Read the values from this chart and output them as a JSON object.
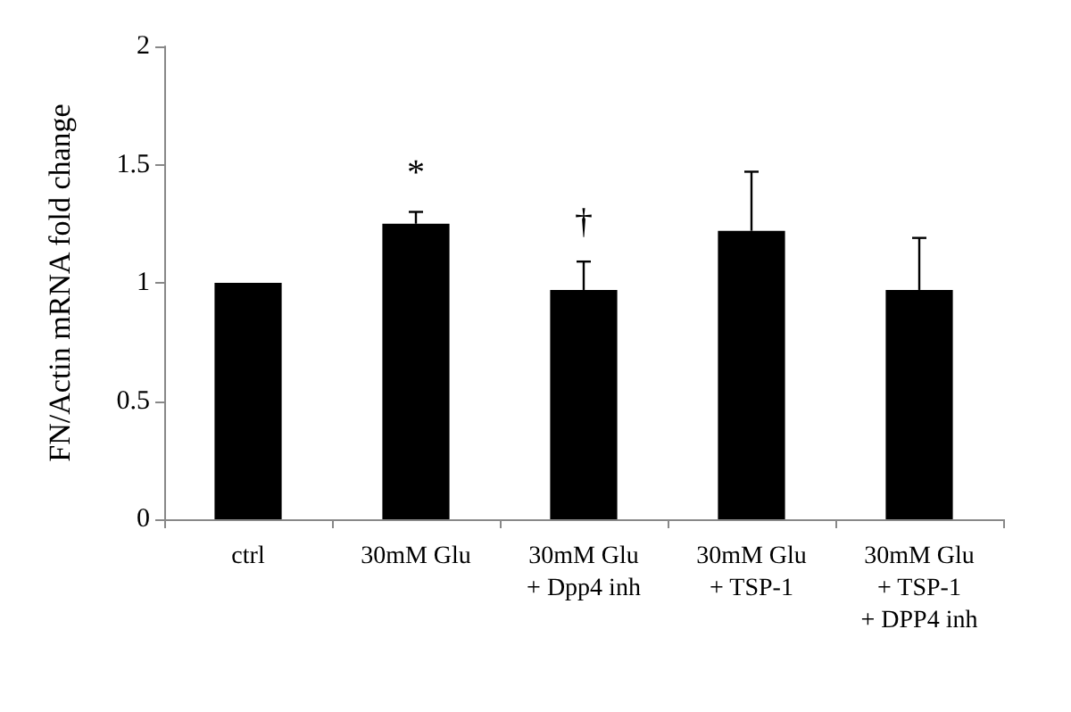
{
  "chart_data": {
    "type": "bar",
    "ylabel": "FN/Actin mRNA fold change",
    "categories": [
      "ctrl",
      "30mM Glu",
      "30mM Glu\n+ Dpp4 inh",
      "30mM Glu\n+ TSP-1",
      "30mM Glu\n+ TSP-1\n+ DPP4 inh"
    ],
    "values": [
      1,
      1.25,
      0.97,
      1.22,
      0.97
    ],
    "errors": [
      null,
      [
        1.25,
        1.3
      ],
      [
        0.97,
        1.09
      ],
      [
        1.22,
        1.47
      ],
      [
        0.97,
        1.19
      ]
    ],
    "color": "#000000",
    "ylim": [
      0,
      2
    ],
    "yticks": [
      0,
      0.5,
      1,
      1.5,
      2
    ],
    "annotations": [
      {
        "text": "*",
        "x": "30mM Glu",
        "y": 1.3
      },
      {
        "text": "†",
        "x": "30mM Glu\n+ Dpp4 inh",
        "y": 1.09
      }
    ]
  }
}
